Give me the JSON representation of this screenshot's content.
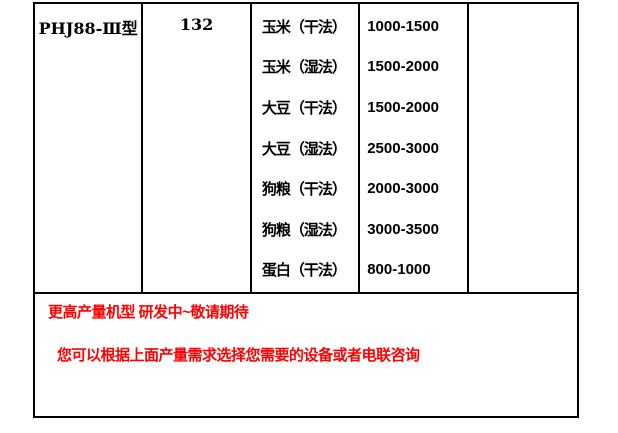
{
  "table": {
    "model": "PHJ88-Ⅲ型",
    "power_value": "132",
    "rows": [
      {
        "product": "玉米（干法）",
        "capacity": "1000-1500"
      },
      {
        "product": "玉米（湿法）",
        "capacity": "1500-2000"
      },
      {
        "product": "大豆（干法）",
        "capacity": "1500-2000"
      },
      {
        "product": "大豆（湿法）",
        "capacity": "2500-3000"
      },
      {
        "product": "狗粮（干法）",
        "capacity": "2000-3000"
      },
      {
        "product": "狗粮（湿法）",
        "capacity": "3000-3500"
      },
      {
        "product": "蛋白（干法）",
        "capacity": "800-1000"
      }
    ],
    "empty_cell": ""
  },
  "notes": {
    "line1": "更高产量机型 研发中~敬请期待",
    "line2": "您可以根据上面产量需求选择您需要的设备或者电联咨询"
  },
  "colors": {
    "border": "#000000",
    "table_text": "#000000",
    "note_text": "#ff0000"
  }
}
